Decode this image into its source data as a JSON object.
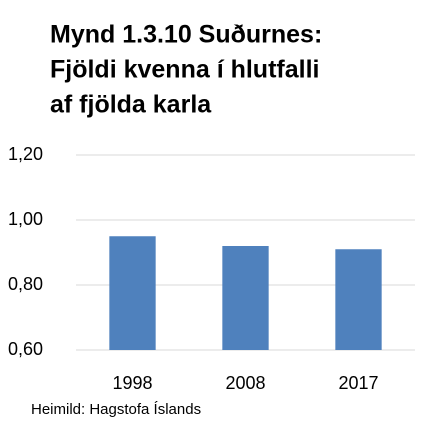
{
  "chart_data": {
    "type": "bar",
    "title": [
      "Mynd 1.3.10 Suðurnes:",
      "Fjöldi kvenna í hlutfalli",
      "af fjölda karla"
    ],
    "categories": [
      "1998",
      "2008",
      "2017"
    ],
    "values": [
      0.95,
      0.92,
      0.91
    ],
    "color": "#4f81bd",
    "ylim": [
      0.6,
      1.2
    ],
    "yticks": [
      {
        "value": 0.6,
        "label": "0,60"
      },
      {
        "value": 0.8,
        "label": "0,80"
      },
      {
        "value": 1.0,
        "label": "1,00"
      },
      {
        "value": 1.2,
        "label": "1,20"
      }
    ],
    "grid": true,
    "source": "Heimild: Hagstofa Íslands"
  }
}
